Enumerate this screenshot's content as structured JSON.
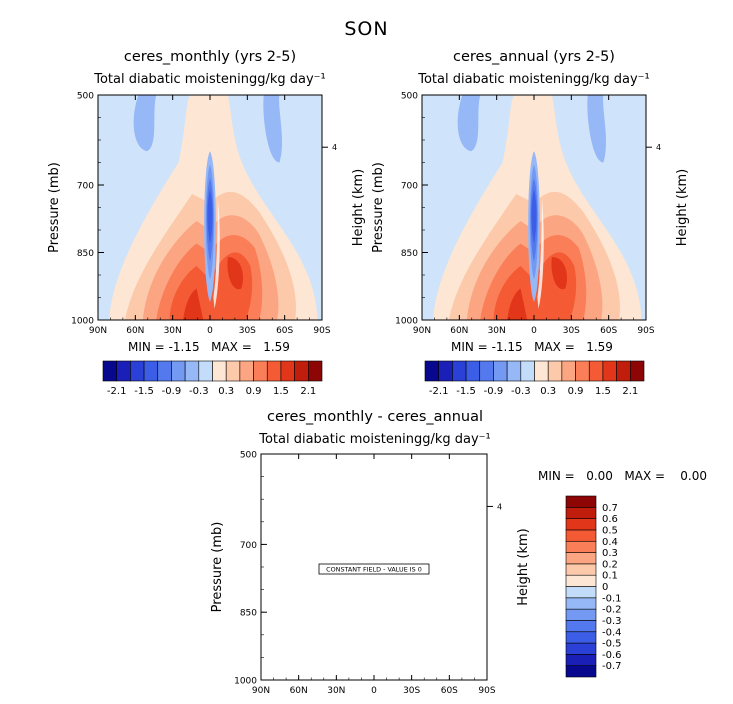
{
  "season": "SON",
  "panels": [
    {
      "title": "ceres_monthly (yrs 2-5)",
      "subtitle": "Total diabatic moistening",
      "units": "g/kg day⁻¹",
      "min_label": "MIN =",
      "min_value": "-1.15",
      "max_label": "MAX =",
      "max_value": "1.59"
    },
    {
      "title": "ceres_annual (yrs 2-5)",
      "subtitle": "Total diabatic moistening",
      "units": "g/kg day⁻¹",
      "min_label": "MIN =",
      "min_value": "-1.15",
      "max_label": "MAX =",
      "max_value": "1.59"
    },
    {
      "title": "ceres_monthly - ceres_annual",
      "subtitle": "Total diabatic moistening",
      "units": "g/kg day⁻¹",
      "min_label": "MIN =",
      "min_value": "0.00",
      "max_label": "MAX =",
      "max_value": "0.00",
      "constant_field_label": "CONSTANT FIELD - VALUE IS 0"
    }
  ],
  "chart_data": [
    {
      "type": "heatmap",
      "title": "ceres_monthly (yrs 2-5)",
      "subtitle": "Total diabatic moistening",
      "units": "g/kg day⁻¹",
      "ylabel": "Pressure (mb)",
      "y2label": "Height (km)",
      "x_ticks": [
        "90N",
        "60N",
        "30N",
        "0",
        "30S",
        "60S",
        "90S"
      ],
      "xlim": [
        90,
        -90
      ],
      "y_ticks": [
        500,
        700,
        850,
        1000
      ],
      "ylim": [
        500,
        1000
      ],
      "y2_ticks": [
        4
      ],
      "levels": [
        -2.1,
        -1.8,
        -1.5,
        -1.2,
        -0.9,
        -0.6,
        -0.3,
        0,
        0.3,
        0.6,
        0.9,
        1.2,
        1.5,
        1.8,
        2.1
      ],
      "colorbar_labels": [
        "-2.1",
        "-1.5",
        "-0.9",
        "-0.3",
        "0.3",
        "0.9",
        "1.5",
        "2.1"
      ],
      "min": -1.15,
      "max": 1.59,
      "features": [
        {
          "lat": 10,
          "p_from": 650,
          "p_to": 950,
          "value": -1.15
        },
        {
          "lat": 50,
          "p_from": 500,
          "p_to": 620,
          "value": -0.3
        },
        {
          "lat": -15,
          "p_from": 760,
          "p_to": 1000,
          "value": 1.59
        },
        {
          "lat": 20,
          "p_from": 780,
          "p_to": 1000,
          "value": 1.2
        }
      ]
    },
    {
      "type": "heatmap",
      "title": "ceres_annual (yrs 2-5)",
      "subtitle": "Total diabatic moistening",
      "units": "g/kg day⁻¹",
      "ylabel": "Pressure (mb)",
      "y2label": "Height (km)",
      "x_ticks": [
        "90N",
        "60N",
        "30N",
        "0",
        "30S",
        "60S",
        "90S"
      ],
      "xlim": [
        90,
        -90
      ],
      "y_ticks": [
        500,
        700,
        850,
        1000
      ],
      "ylim": [
        500,
        1000
      ],
      "y2_ticks": [
        4
      ],
      "levels": [
        -2.1,
        -1.8,
        -1.5,
        -1.2,
        -0.9,
        -0.6,
        -0.3,
        0,
        0.3,
        0.6,
        0.9,
        1.2,
        1.5,
        1.8,
        2.1
      ],
      "colorbar_labels": [
        "-2.1",
        "-1.5",
        "-0.9",
        "-0.3",
        "0.3",
        "0.9",
        "1.5",
        "2.1"
      ],
      "min": -1.15,
      "max": 1.59,
      "features": [
        {
          "lat": 10,
          "p_from": 650,
          "p_to": 950,
          "value": -1.15
        },
        {
          "lat": 50,
          "p_from": 500,
          "p_to": 620,
          "value": -0.3
        },
        {
          "lat": -15,
          "p_from": 760,
          "p_to": 1000,
          "value": 1.59
        },
        {
          "lat": 20,
          "p_from": 780,
          "p_to": 1000,
          "value": 1.2
        }
      ]
    },
    {
      "type": "heatmap",
      "title": "ceres_monthly - ceres_annual",
      "subtitle": "Total diabatic moistening",
      "units": "g/kg day⁻¹",
      "ylabel": "Pressure (mb)",
      "y2label": "Height (km)",
      "x_ticks": [
        "90N",
        "60N",
        "30N",
        "0",
        "30S",
        "60S",
        "90S"
      ],
      "xlim": [
        90,
        -90
      ],
      "y_ticks": [
        500,
        700,
        850,
        1000
      ],
      "ylim": [
        500,
        1000
      ],
      "y2_ticks": [
        4
      ],
      "levels": [
        -0.7,
        -0.6,
        -0.5,
        -0.4,
        -0.3,
        -0.2,
        -0.1,
        0,
        0.1,
        0.2,
        0.3,
        0.4,
        0.5,
        0.6,
        0.7
      ],
      "colorbar_labels": [
        "-0.7",
        "-0.6",
        "-0.5",
        "-0.4",
        "-0.3",
        "-0.2",
        "-0.1",
        "0",
        "0.1",
        "0.2",
        "0.3",
        "0.4",
        "0.5",
        "0.6",
        "0.7"
      ],
      "min": 0.0,
      "max": 0.0,
      "constant_value": 0
    }
  ],
  "colorbar_colors_16": [
    "#08088f",
    "#1a1fb8",
    "#2a40d6",
    "#3c5ee6",
    "#5479ee",
    "#7499f2",
    "#97b8f6",
    "#c3dcf9",
    "#fde6d3",
    "#fcc9aa",
    "#fca582",
    "#fa7f58",
    "#f45a33",
    "#e2361a",
    "#c01d0c",
    "#8d0505"
  ],
  "colors": {
    "field_background": "#cfe4fa",
    "contour_blue": "#97b8f6",
    "contour_pale_red": "#fde6d3"
  }
}
